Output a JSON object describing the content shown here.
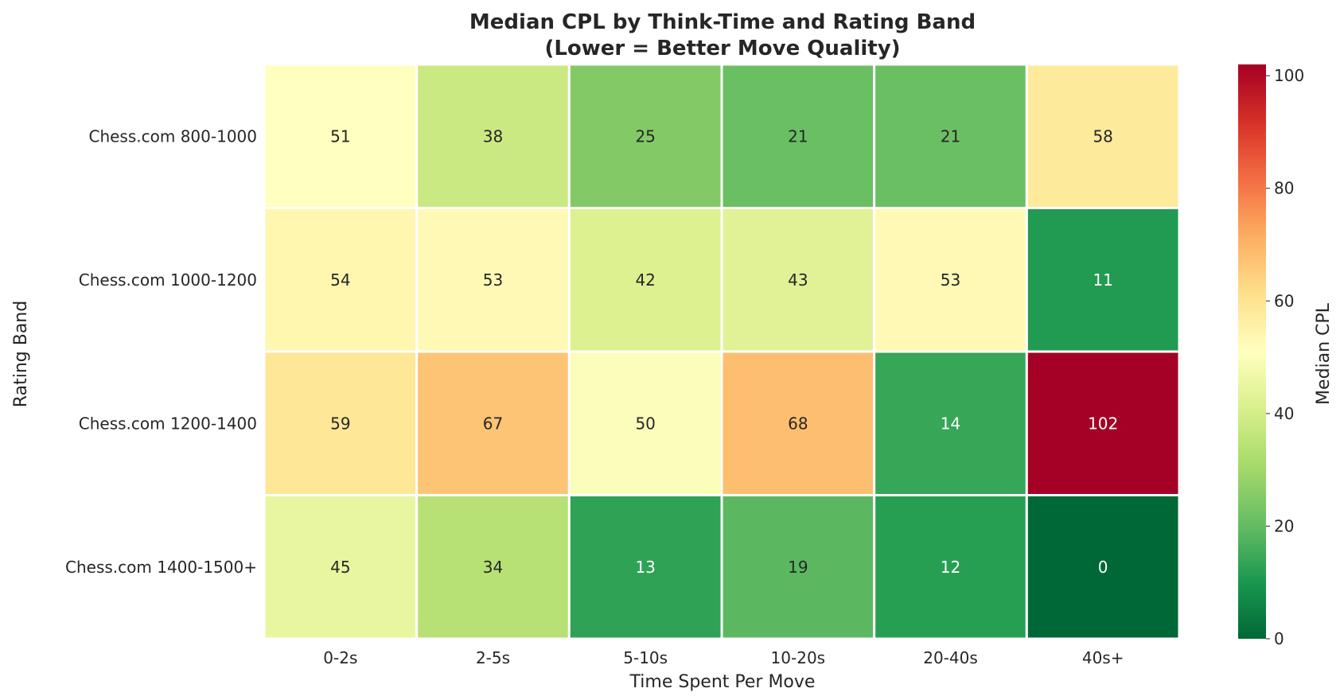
{
  "chart_data": {
    "type": "heatmap",
    "title": [
      "Median CPL by Think-Time and Rating Band",
      "(Lower = Better Move Quality)"
    ],
    "xlabel": "Time Spent Per Move",
    "ylabel": "Rating Band",
    "x_categories": [
      "0-2s",
      "2-5s",
      "5-10s",
      "10-20s",
      "20-40s",
      "40s+"
    ],
    "y_categories": [
      "Chess.com 800-1000",
      "Chess.com 1000-1200",
      "Chess.com 1200-1400",
      "Chess.com 1400-1500+"
    ],
    "values": [
      [
        51,
        38,
        25,
        21,
        21,
        58
      ],
      [
        54,
        53,
        42,
        43,
        53,
        11
      ],
      [
        59,
        67,
        50,
        68,
        14,
        102
      ],
      [
        45,
        34,
        13,
        19,
        12,
        0
      ]
    ],
    "colorbar": {
      "label": "Median CPL",
      "colormap": "RdYlGn_r",
      "range": [
        0,
        102
      ],
      "ticks": [
        "0",
        "20",
        "40",
        "60",
        "80",
        "100"
      ]
    },
    "grid": false
  }
}
